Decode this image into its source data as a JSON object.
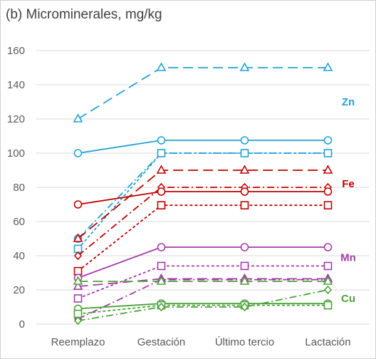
{
  "chart_data": {
    "type": "line",
    "title": "(b) Microminerales, mg/kg",
    "categories": [
      "Reemplazo",
      "Gestación",
      "Último tercio",
      "Lactación"
    ],
    "ylim": [
      0,
      160
    ],
    "yticks": [
      0,
      20,
      40,
      60,
      80,
      100,
      120,
      140,
      160
    ],
    "grid": "horizontal",
    "series": [
      {
        "group": "Zn",
        "values": [
          120,
          150,
          150,
          150
        ],
        "color": "#22a2d3",
        "dash": "long-dash",
        "marker": "triangle"
      },
      {
        "group": "Zn",
        "values": [
          100,
          107.5,
          107.5,
          107.5
        ],
        "color": "#22a2d3",
        "dash": "solid",
        "marker": "circle"
      },
      {
        "group": "Zn",
        "values": [
          50,
          100,
          100,
          100
        ],
        "color": "#22a2d3",
        "dash": "dash-dot",
        "marker": "circle"
      },
      {
        "group": "Zn",
        "values": [
          44,
          100,
          100,
          100
        ],
        "color": "#22a2d3",
        "dash": "short-dash",
        "marker": "square"
      },
      {
        "group": "Fe",
        "values": [
          50,
          90,
          90,
          90
        ],
        "color": "#c00000",
        "dash": "long-dash",
        "marker": "triangle"
      },
      {
        "group": "Fe",
        "values": [
          40,
          80,
          80,
          80
        ],
        "color": "#c00000",
        "dash": "dash-dot",
        "marker": "diamond"
      },
      {
        "group": "Fe",
        "values": [
          70,
          77.5,
          77.5,
          77.5
        ],
        "color": "#c00000",
        "dash": "solid",
        "marker": "circle"
      },
      {
        "group": "Fe",
        "values": [
          31,
          69.5,
          69.5,
          69.5
        ],
        "color": "#c00000",
        "dash": "short-dash",
        "marker": "square"
      },
      {
        "group": "Mn",
        "values": [
          27,
          45,
          45,
          45
        ],
        "color": "#a53aa8",
        "dash": "solid",
        "marker": "circle"
      },
      {
        "group": "Mn",
        "values": [
          15,
          34,
          34,
          34
        ],
        "color": "#a53aa8",
        "dash": "short-dash",
        "marker": "square"
      },
      {
        "group": "Mn",
        "values": [
          22,
          26.5,
          26.5,
          26.5
        ],
        "color": "#a53aa8",
        "dash": "long-dash",
        "marker": "triangle"
      },
      {
        "group": "Mn",
        "values": [
          3,
          26,
          26,
          26
        ],
        "color": "#a53aa8",
        "dash": "dash-dot",
        "marker": "diamond"
      },
      {
        "group": "Cu",
        "values": [
          25,
          25,
          25,
          25
        ],
        "color": "#4aa338",
        "dash": "long-dash",
        "marker": "triangle"
      },
      {
        "group": "Cu",
        "values": [
          9,
          12,
          12,
          12
        ],
        "color": "#4aa338",
        "dash": "solid",
        "marker": "circle"
      },
      {
        "group": "Cu",
        "values": [
          6,
          11,
          11,
          11
        ],
        "color": "#4aa338",
        "dash": "short-dash",
        "marker": "square"
      },
      {
        "group": "Cu",
        "values": [
          2,
          10,
          10,
          20
        ],
        "color": "#4aa338",
        "dash": "dash-dot",
        "marker": "diamond"
      }
    ],
    "annotations": [
      {
        "text": "Zn",
        "y": 130,
        "color": "#22a2d3"
      },
      {
        "text": "Fe",
        "y": 82,
        "color": "#c00000"
      },
      {
        "text": "Mn",
        "y": 39,
        "color": "#a53aa8"
      },
      {
        "text": "Cu",
        "y": 15,
        "color": "#4aa338"
      }
    ]
  }
}
